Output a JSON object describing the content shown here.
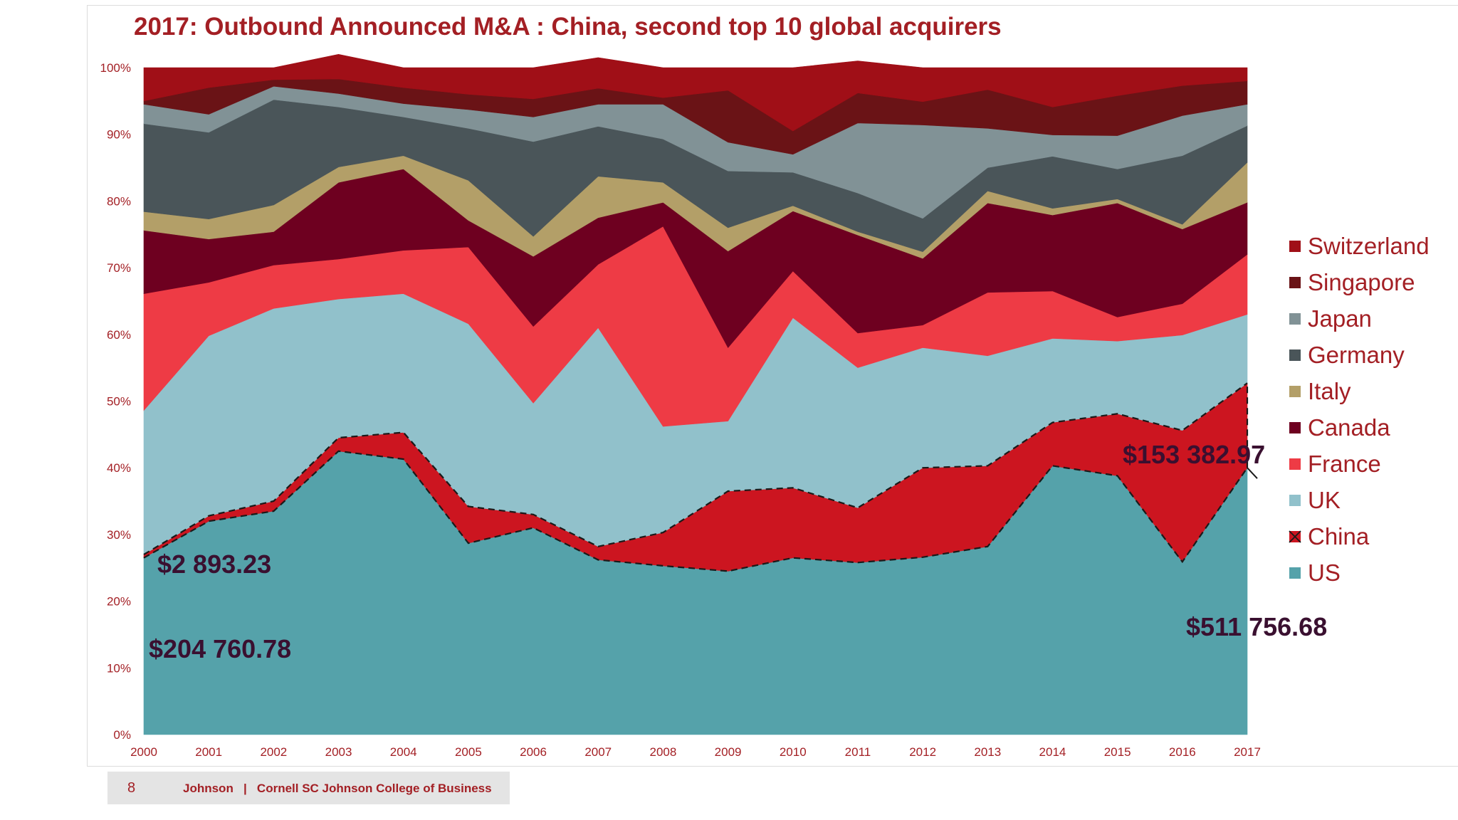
{
  "chart_data": {
    "type": "area",
    "stacked": true,
    "normalized": true,
    "title": "2017: Outbound Announced M&A : China, second top 10 global acquirers",
    "xlabel": "",
    "ylabel": "",
    "ylim": [
      0,
      100
    ],
    "grid": false,
    "legend_position": "right",
    "x": [
      "2000",
      "2001",
      "2002",
      "2003",
      "2004",
      "2005",
      "2006",
      "2007",
      "2008",
      "2009",
      "2010",
      "2011",
      "2012",
      "2013",
      "2014",
      "2015",
      "2016",
      "2017"
    ],
    "y_ticks": [
      "0%",
      "10%",
      "20%",
      "30%",
      "40%",
      "50%",
      "60%",
      "70%",
      "80%",
      "90%",
      "100%"
    ],
    "series": [
      {
        "name": "US",
        "color": "#55a2aa",
        "values": [
          26.5,
          32,
          33.5,
          42.5,
          41.3,
          28.7,
          31,
          26.2,
          25.3,
          24.5,
          26.5,
          25.8,
          26.6,
          28.2,
          40.3,
          38.8,
          25.9,
          40
        ]
      },
      {
        "name": "China",
        "color": "#cc1520",
        "values": [
          0.5,
          0.8,
          1.5,
          2,
          4,
          5.5,
          2,
          2,
          5,
          12,
          10.5,
          8.2,
          13.4,
          12.1,
          6.5,
          9.3,
          19.7,
          12.7
        ]
      },
      {
        "name": "UK",
        "color": "#91c1cb",
        "values": [
          21.6,
          27,
          28.9,
          20.8,
          20.8,
          27.4,
          16.7,
          32.8,
          15.9,
          10.5,
          25.5,
          21,
          18,
          16.5,
          12.6,
          10.9,
          14.3,
          10.3
        ]
      },
      {
        "name": "France",
        "color": "#ee3b45",
        "values": [
          17.5,
          8,
          6.5,
          6,
          6.5,
          11.5,
          11.5,
          9.5,
          30,
          11,
          7,
          5.2,
          3.4,
          9.5,
          7.1,
          3.6,
          4.7,
          9
        ]
      },
      {
        "name": "Canada",
        "color": "#6e0020",
        "values": [
          9.5,
          6.5,
          5,
          11.5,
          12.2,
          4,
          10.5,
          7,
          3.6,
          14.5,
          9,
          14.7,
          10,
          13.4,
          11.4,
          17.1,
          11.2,
          7.8
        ]
      },
      {
        "name": "Italy",
        "color": "#b39f68",
        "values": [
          2.8,
          3,
          4,
          2.3,
          2,
          6,
          3,
          6.2,
          3,
          3.5,
          0.8,
          0.5,
          1,
          1.8,
          1,
          0.6,
          0.7,
          6
        ]
      },
      {
        "name": "Germany",
        "color": "#4a5559",
        "values": [
          13.2,
          13,
          15.8,
          9,
          5.8,
          7.8,
          14.2,
          7.5,
          6.5,
          8.5,
          5,
          5.8,
          5,
          3.5,
          7.8,
          4.5,
          10.3,
          5.5
        ]
      },
      {
        "name": "Japan",
        "color": "#819296",
        "values": [
          2.9,
          2.7,
          2,
          2,
          2,
          2.8,
          3.7,
          3.3,
          5.2,
          4.3,
          2.7,
          10.5,
          14,
          5.9,
          3.2,
          5,
          6,
          3.2
        ]
      },
      {
        "name": "Singapore",
        "color": "#6a1316",
        "values": [
          0.5,
          4,
          1,
          2.2,
          2.4,
          2.3,
          2.7,
          2.4,
          1,
          7.8,
          3.5,
          4.5,
          3.5,
          5.8,
          4.2,
          6,
          4.5,
          3.5
        ]
      },
      {
        "name": "Switzerland",
        "color": "#a00f17",
        "values": [
          5,
          3,
          1.8,
          3.7,
          3,
          4,
          4.7,
          4.6,
          4.5,
          3.4,
          9.5,
          4.8,
          5.1,
          3.3,
          5.9,
          4.2,
          2.7,
          2
        ]
      }
    ],
    "annotations": [
      {
        "text": "$2 893.23",
        "series": "China",
        "x": "2000"
      },
      {
        "text": "$204 760.78",
        "series": "US",
        "x": "2000"
      },
      {
        "text": "$153 382.97",
        "series": "China",
        "x": "2017"
      },
      {
        "text": "$511 756.68",
        "series": "US",
        "x": "2017"
      }
    ]
  },
  "footer": {
    "page_number": "8",
    "text": "Johnson   |   Cornell SC Johnson College of Business"
  }
}
